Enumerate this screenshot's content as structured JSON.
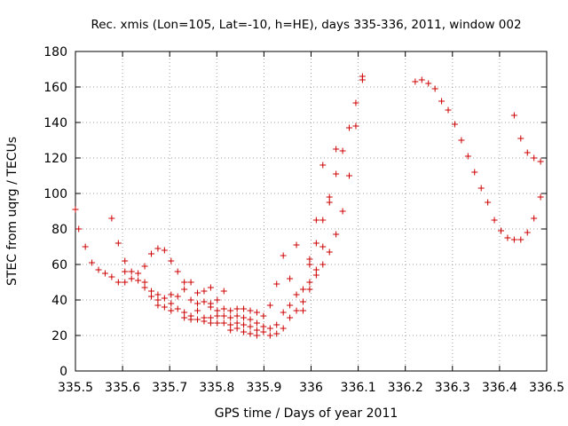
{
  "chart_data": {
    "type": "scatter",
    "title": "Rec. xmis (Lon=105, Lat=-10, h=HE), days 335-336, 2011, window 002",
    "xlabel": "GPS time / Days of year 2011",
    "ylabel": "STEC from uqrg / TECUs",
    "xlim": [
      335.5,
      336.5
    ],
    "ylim": [
      0,
      180
    ],
    "x_ticks": [
      "335.5",
      "335.6",
      "335.7",
      "335.8",
      "335.9",
      "336",
      "336.1",
      "336.2",
      "336.3",
      "336.4",
      "336.5"
    ],
    "y_ticks": [
      "0",
      "20",
      "40",
      "60",
      "80",
      "100",
      "120",
      "140",
      "160",
      "180"
    ],
    "grid": true,
    "marker": "plus",
    "color": "#cc0000",
    "points": [
      [
        335.5,
        91
      ],
      [
        335.507,
        80
      ],
      [
        335.521,
        70
      ],
      [
        335.535,
        61
      ],
      [
        335.549,
        57
      ],
      [
        335.563,
        55
      ],
      [
        335.577,
        86
      ],
      [
        335.577,
        53
      ],
      [
        335.591,
        72
      ],
      [
        335.591,
        50
      ],
      [
        335.605,
        62
      ],
      [
        335.605,
        56
      ],
      [
        335.605,
        50
      ],
      [
        335.619,
        56
      ],
      [
        335.619,
        52
      ],
      [
        335.633,
        55
      ],
      [
        335.633,
        51
      ],
      [
        335.647,
        59
      ],
      [
        335.647,
        50
      ],
      [
        335.647,
        47
      ],
      [
        335.661,
        66
      ],
      [
        335.661,
        45
      ],
      [
        335.661,
        42
      ],
      [
        335.675,
        69
      ],
      [
        335.675,
        43
      ],
      [
        335.675,
        40
      ],
      [
        335.675,
        37
      ],
      [
        335.689,
        68
      ],
      [
        335.689,
        41
      ],
      [
        335.689,
        36
      ],
      [
        335.703,
        62
      ],
      [
        335.703,
        43
      ],
      [
        335.703,
        38
      ],
      [
        335.703,
        34
      ],
      [
        335.717,
        56
      ],
      [
        335.717,
        42
      ],
      [
        335.717,
        35
      ],
      [
        335.731,
        50
      ],
      [
        335.731,
        46
      ],
      [
        335.731,
        33
      ],
      [
        335.731,
        30
      ],
      [
        335.745,
        50
      ],
      [
        335.745,
        40
      ],
      [
        335.745,
        31
      ],
      [
        335.745,
        29
      ],
      [
        335.759,
        44
      ],
      [
        335.759,
        38
      ],
      [
        335.759,
        34
      ],
      [
        335.759,
        29
      ],
      [
        335.773,
        45
      ],
      [
        335.773,
        39
      ],
      [
        335.773,
        30
      ],
      [
        335.773,
        28
      ],
      [
        335.787,
        47
      ],
      [
        335.787,
        38
      ],
      [
        335.787,
        36
      ],
      [
        335.787,
        30
      ],
      [
        335.787,
        27
      ],
      [
        335.801,
        40
      ],
      [
        335.801,
        34
      ],
      [
        335.801,
        31
      ],
      [
        335.801,
        27
      ],
      [
        335.815,
        45
      ],
      [
        335.815,
        35
      ],
      [
        335.815,
        31
      ],
      [
        335.815,
        27
      ],
      [
        335.829,
        34
      ],
      [
        335.829,
        30
      ],
      [
        335.829,
        26
      ],
      [
        335.829,
        23
      ],
      [
        335.843,
        35
      ],
      [
        335.843,
        31
      ],
      [
        335.843,
        27
      ],
      [
        335.843,
        24
      ],
      [
        335.857,
        35
      ],
      [
        335.857,
        30
      ],
      [
        335.857,
        26
      ],
      [
        335.857,
        22
      ],
      [
        335.871,
        34
      ],
      [
        335.871,
        29
      ],
      [
        335.871,
        25
      ],
      [
        335.871,
        21
      ],
      [
        335.885,
        33
      ],
      [
        335.885,
        27
      ],
      [
        335.885,
        23
      ],
      [
        335.885,
        20
      ],
      [
        335.899,
        31
      ],
      [
        335.899,
        25
      ],
      [
        335.899,
        22
      ],
      [
        335.913,
        37
      ],
      [
        335.913,
        24
      ],
      [
        335.913,
        20
      ],
      [
        335.927,
        49
      ],
      [
        335.927,
        26
      ],
      [
        335.927,
        21
      ],
      [
        335.941,
        65
      ],
      [
        335.941,
        33
      ],
      [
        335.941,
        24
      ],
      [
        335.955,
        52
      ],
      [
        335.955,
        37
      ],
      [
        335.955,
        30
      ],
      [
        335.969,
        71
      ],
      [
        335.969,
        43
      ],
      [
        335.969,
        34
      ],
      [
        335.983,
        46
      ],
      [
        335.983,
        39
      ],
      [
        335.983,
        34
      ],
      [
        335.997,
        63
      ],
      [
        335.997,
        60
      ],
      [
        335.997,
        50
      ],
      [
        335.997,
        46
      ],
      [
        336.011,
        85
      ],
      [
        336.011,
        72
      ],
      [
        336.011,
        57
      ],
      [
        336.011,
        54
      ],
      [
        336.025,
        116
      ],
      [
        336.025,
        85
      ],
      [
        336.025,
        70
      ],
      [
        336.025,
        60
      ],
      [
        336.039,
        98
      ],
      [
        336.039,
        95
      ],
      [
        336.039,
        67
      ],
      [
        336.053,
        125
      ],
      [
        336.053,
        111
      ],
      [
        336.053,
        77
      ],
      [
        336.067,
        124
      ],
      [
        336.067,
        90
      ],
      [
        336.081,
        137
      ],
      [
        336.081,
        110
      ],
      [
        336.095,
        151
      ],
      [
        336.095,
        138
      ],
      [
        336.109,
        166
      ],
      [
        336.109,
        164
      ],
      [
        336.221,
        163
      ],
      [
        336.235,
        164
      ],
      [
        336.249,
        162
      ],
      [
        336.263,
        159
      ],
      [
        336.277,
        152
      ],
      [
        336.291,
        147
      ],
      [
        336.305,
        139
      ],
      [
        336.319,
        130
      ],
      [
        336.333,
        121
      ],
      [
        336.347,
        112
      ],
      [
        336.361,
        103
      ],
      [
        336.375,
        95
      ],
      [
        336.389,
        85
      ],
      [
        336.403,
        79
      ],
      [
        336.417,
        75
      ],
      [
        336.431,
        144
      ],
      [
        336.431,
        74
      ],
      [
        336.445,
        131
      ],
      [
        336.445,
        74
      ],
      [
        336.459,
        123
      ],
      [
        336.459,
        78
      ],
      [
        336.473,
        120
      ],
      [
        336.473,
        86
      ],
      [
        336.487,
        118
      ],
      [
        336.487,
        98
      ]
    ]
  }
}
